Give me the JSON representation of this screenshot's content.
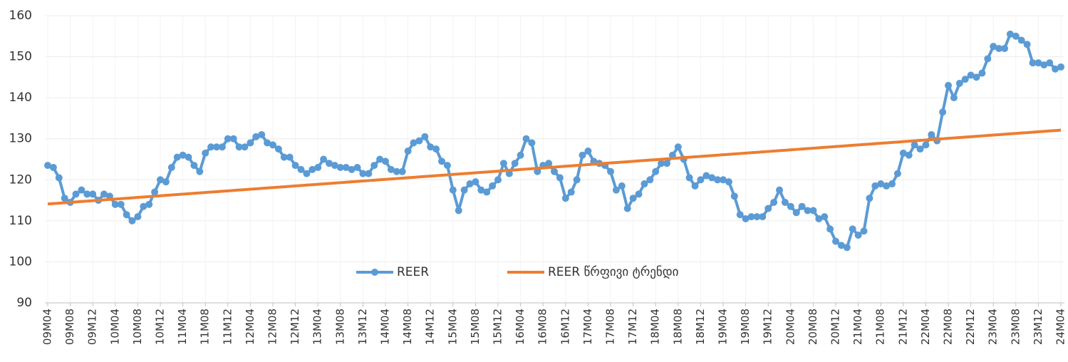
{
  "chart_data": {
    "type": "line",
    "categories": [
      "09M04",
      null,
      null,
      null,
      "09M08",
      null,
      null,
      null,
      "09M12",
      null,
      null,
      null,
      "10M04",
      null,
      null,
      null,
      "10M08",
      null,
      null,
      null,
      "10M12",
      null,
      null,
      null,
      "11M04",
      null,
      null,
      null,
      "11M08",
      null,
      null,
      null,
      "11M12",
      null,
      null,
      null,
      "12M04",
      null,
      null,
      null,
      "12M08",
      null,
      null,
      null,
      "12M12",
      null,
      null,
      null,
      "13M04",
      null,
      null,
      null,
      "13M08",
      null,
      null,
      null,
      "13M12",
      null,
      null,
      null,
      "14M04",
      null,
      null,
      null,
      "14M08",
      null,
      null,
      null,
      "14M12",
      null,
      null,
      null,
      "15M04",
      null,
      null,
      null,
      "15M08",
      null,
      null,
      null,
      "15M12",
      null,
      null,
      null,
      "16M04",
      null,
      null,
      null,
      "16M08",
      null,
      null,
      null,
      "16M12",
      null,
      null,
      null,
      "17M04",
      null,
      null,
      null,
      "17M08",
      null,
      null,
      null,
      "17M12",
      null,
      null,
      null,
      "18M04",
      null,
      null,
      null,
      "18M08",
      null,
      null,
      null,
      "18M12",
      null,
      null,
      null,
      "19M04",
      null,
      null,
      null,
      "19M08",
      null,
      null,
      null,
      "19M12",
      null,
      null,
      null,
      "20M04",
      null,
      null,
      null,
      "20M08",
      null,
      null,
      null,
      "20M12",
      null,
      null,
      null,
      "21M04",
      null,
      null,
      null,
      "21M08",
      null,
      null,
      null,
      "21M12",
      null,
      null,
      null,
      "22M04",
      null,
      null,
      null,
      "22M08",
      null,
      null,
      null,
      "22M12",
      null,
      null,
      null,
      "23M04",
      null,
      null,
      null,
      "23M08",
      null,
      null,
      null,
      "23M12",
      null,
      null,
      null,
      "24M04"
    ],
    "series": [
      {
        "name": "REER",
        "color": "#5b9bd5",
        "markers": true,
        "values": [
          123.5,
          123,
          120.5,
          115.5,
          114.5,
          116.5,
          117.5,
          116.5,
          116.5,
          115,
          116.5,
          116,
          114,
          114,
          111.5,
          110,
          111,
          113.5,
          114,
          117,
          120,
          119.5,
          123,
          125.5,
          126,
          125.5,
          123.5,
          122,
          126.5,
          128,
          128,
          128,
          130,
          130,
          128,
          128,
          129,
          130.5,
          131,
          129,
          128.5,
          127.5,
          125.5,
          125.5,
          123.5,
          122.5,
          121.5,
          122.5,
          123,
          125,
          124,
          123.5,
          123,
          123,
          122.5,
          123,
          121.5,
          121.5,
          123.5,
          125,
          124.5,
          122.5,
          122,
          122,
          127,
          129,
          129.5,
          130.5,
          128,
          127.5,
          124.5,
          123.5,
          117.5,
          112.5,
          117.5,
          119,
          119.5,
          117.5,
          117,
          118.5,
          120,
          124,
          121.5,
          124,
          126,
          130,
          129,
          122,
          123.5,
          124,
          122,
          120.5,
          115.5,
          117,
          120,
          126,
          127,
          124.5,
          124,
          123.5,
          122,
          117.5,
          118.5,
          113,
          115.5,
          116.5,
          119,
          120,
          122,
          124,
          124,
          126,
          128,
          125,
          120.5,
          118.5,
          120,
          121,
          120.5,
          120,
          120,
          119.5,
          116,
          111.5,
          110.5,
          111,
          111,
          111,
          113,
          114.5,
          117.5,
          114.5,
          113.5,
          112,
          113.5,
          112.5,
          112.5,
          110.5,
          111,
          108,
          105,
          104,
          103.5,
          108,
          106.5,
          107.5,
          115.5,
          118.5,
          119,
          118.5,
          119,
          121.5,
          126.5,
          126,
          128.5,
          127.5,
          128.5,
          131,
          129.5,
          136.5,
          143,
          140,
          143.5,
          144.5,
          145.5,
          145,
          146,
          149.5,
          152.5,
          152,
          152,
          155.5,
          155,
          154,
          153,
          148.5,
          148.5,
          148,
          148.5,
          147,
          147.5
        ]
      },
      {
        "name": "REER წრფივი ტრენდი",
        "color": "#ed7d31",
        "markers": false,
        "values": [
          114.1,
          114.2,
          114.3,
          114.4,
          114.5,
          114.6,
          114.7,
          114.8,
          114.9,
          115,
          115.1,
          115.2,
          115.3,
          115.4,
          115.5,
          115.6,
          115.7,
          115.8,
          115.9,
          116,
          116.1,
          116.2,
          116.3,
          116.4,
          116.5,
          116.6,
          116.7,
          116.8,
          116.9,
          117,
          117.1,
          117.2,
          117.3,
          117.4,
          117.5,
          117.6,
          117.7,
          117.8,
          117.9,
          118,
          118.1,
          118.2,
          118.3,
          118.4,
          118.5,
          118.6,
          118.7,
          118.8,
          118.9,
          119,
          119.1,
          119.2,
          119.3,
          119.4,
          119.5,
          119.6,
          119.7,
          119.8,
          119.9,
          120,
          120.1,
          120.2,
          120.3,
          120.4,
          120.5,
          120.6,
          120.7,
          120.8,
          120.9,
          121,
          121.1,
          121.2,
          121.3,
          121.4,
          121.5,
          121.6,
          121.7,
          121.8,
          121.9,
          122,
          122.1,
          122.2,
          122.3,
          122.4,
          122.5,
          122.6,
          122.7,
          122.8,
          122.9,
          123,
          123.1,
          123.2,
          123.3,
          123.4,
          123.5,
          123.6,
          123.7,
          123.8,
          123.9,
          124,
          124.1,
          124.2,
          124.3,
          124.4,
          124.5,
          124.6,
          124.7,
          124.8,
          124.9,
          125,
          125.1,
          125.2,
          125.3,
          125.4,
          125.5,
          125.6,
          125.7,
          125.8,
          125.9,
          126,
          126.1,
          126.2,
          126.3,
          126.4,
          126.5,
          126.6,
          126.7,
          126.8,
          126.9,
          127,
          127.1,
          127.2,
          127.3,
          127.4,
          127.5,
          127.6,
          127.7,
          127.8,
          127.9,
          128,
          128.1,
          128.2,
          128.3,
          128.4,
          128.5,
          128.6,
          128.7,
          128.8,
          128.9,
          129,
          129.1,
          129.2,
          129.3,
          129.4,
          129.5,
          129.6,
          129.7,
          129.8,
          129.9,
          130,
          130.1,
          130.2,
          130.3,
          130.4,
          130.5,
          130.6,
          130.7,
          130.8,
          130.9,
          131,
          131.1,
          131.2,
          131.3,
          131.4,
          131.5,
          131.6,
          131.7,
          131.8,
          131.9,
          132,
          132.1
        ]
      }
    ],
    "ylim": [
      90,
      160
    ],
    "yticks": [
      90,
      100,
      110,
      120,
      130,
      140,
      150,
      160
    ],
    "grid": true
  }
}
